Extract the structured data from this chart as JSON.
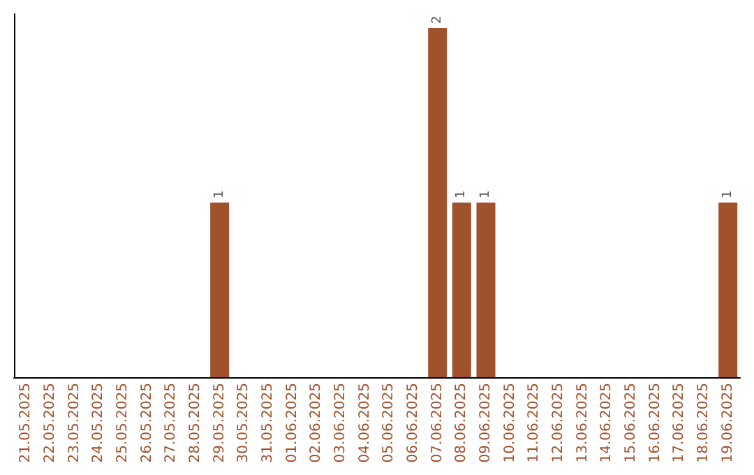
{
  "chart_data": {
    "type": "bar",
    "categories": [
      "21.05.2025",
      "22.05.2025",
      "23.05.2025",
      "24.05.2025",
      "25.05.2025",
      "26.05.2025",
      "27.05.2025",
      "28.05.2025",
      "29.05.2025",
      "30.05.2025",
      "31.05.2025",
      "01.06.2025",
      "02.06.2025",
      "03.06.2025",
      "04.06.2025",
      "05.06.2025",
      "06.06.2025",
      "07.06.2025",
      "08.06.2025",
      "09.06.2025",
      "10.06.2025",
      "11.06.2025",
      "12.06.2025",
      "13.06.2025",
      "14.06.2025",
      "15.06.2025",
      "16.06.2025",
      "17.06.2025",
      "18.06.2025",
      "19.06.2025"
    ],
    "values": [
      0,
      0,
      0,
      0,
      0,
      0,
      0,
      0,
      1,
      0,
      0,
      0,
      0,
      0,
      0,
      0,
      0,
      2,
      1,
      1,
      0,
      0,
      0,
      0,
      0,
      0,
      0,
      0,
      0,
      1
    ],
    "value_labels": [
      null,
      null,
      null,
      null,
      null,
      null,
      null,
      null,
      "1",
      null,
      null,
      null,
      null,
      null,
      null,
      null,
      null,
      "2",
      "1",
      "1",
      null,
      null,
      null,
      null,
      null,
      null,
      null,
      null,
      null,
      "1"
    ],
    "color": "#a0522d",
    "ylim": [
      0,
      2.08
    ],
    "tick_labels": "x"
  }
}
